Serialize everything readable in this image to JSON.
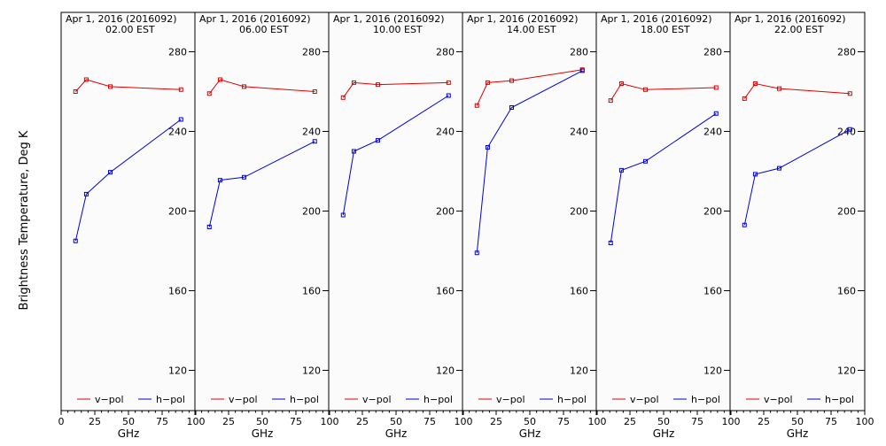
{
  "ylabel": "Brightness Temperature, Deg K",
  "xlabel": "GHz",
  "xticks": [
    "0",
    "25",
    "50",
    "75",
    "100"
  ],
  "yticks": [
    "120",
    "160",
    "200",
    "240",
    "280"
  ],
  "legend": {
    "vpol": "v−pol",
    "hpol": "h−pol"
  },
  "colors": {
    "vpol": "#e00000",
    "hpol": "#0000d8",
    "axes": "#000000",
    "panel_bg": "#fbfbfb"
  },
  "chart_data": [
    {
      "type": "line",
      "date": "Apr  1, 2016 (2016092)",
      "time": "02.00 EST",
      "xlim": [
        0,
        100
      ],
      "ylim": [
        100,
        295
      ],
      "series": [
        {
          "name": "v−pol",
          "x": [
            10.7,
            18.7,
            36.5,
            89.0
          ],
          "y": [
            260,
            266,
            262.5,
            261
          ]
        },
        {
          "name": "h−pol",
          "x": [
            10.7,
            18.7,
            36.5,
            89.0
          ],
          "y": [
            185,
            208.5,
            219.5,
            246
          ]
        }
      ]
    },
    {
      "type": "line",
      "date": "Apr  1, 2016 (2016092)",
      "time": "06.00 EST",
      "xlim": [
        0,
        100
      ],
      "ylim": [
        100,
        295
      ],
      "series": [
        {
          "name": "v−pol",
          "x": [
            10.7,
            18.7,
            36.5,
            89.0
          ],
          "y": [
            259,
            266,
            262.5,
            260
          ]
        },
        {
          "name": "h−pol",
          "x": [
            10.7,
            18.7,
            36.5,
            89.0
          ],
          "y": [
            192,
            215.5,
            217,
            235
          ]
        }
      ]
    },
    {
      "type": "line",
      "date": "Apr  1, 2016 (2016092)",
      "time": "10.00 EST",
      "xlim": [
        0,
        100
      ],
      "ylim": [
        100,
        295
      ],
      "series": [
        {
          "name": "v−pol",
          "x": [
            10.7,
            18.7,
            36.5,
            89.0
          ],
          "y": [
            257,
            264.5,
            263.5,
            264.5
          ]
        },
        {
          "name": "h−pol",
          "x": [
            10.7,
            18.7,
            36.5,
            89.0
          ],
          "y": [
            198,
            230,
            235.5,
            258
          ]
        }
      ]
    },
    {
      "type": "line",
      "date": "Apr  1, 2016 (2016092)",
      "time": "14.00 EST",
      "xlim": [
        0,
        100
      ],
      "ylim": [
        100,
        295
      ],
      "series": [
        {
          "name": "v−pol",
          "x": [
            10.7,
            18.7,
            36.5,
            89.0
          ],
          "y": [
            253,
            264.5,
            265.5,
            271
          ]
        },
        {
          "name": "h−pol",
          "x": [
            10.7,
            18.7,
            36.5,
            89.0
          ],
          "y": [
            179,
            232,
            252,
            270.5
          ]
        }
      ]
    },
    {
      "type": "line",
      "date": "Apr  1, 2016 (2016092)",
      "time": "18.00 EST",
      "xlim": [
        0,
        100
      ],
      "ylim": [
        100,
        295
      ],
      "series": [
        {
          "name": "v−pol",
          "x": [
            10.7,
            18.7,
            36.5,
            89.0
          ],
          "y": [
            255.5,
            264,
            261,
            262
          ]
        },
        {
          "name": "h−pol",
          "x": [
            10.7,
            18.7,
            36.5,
            89.0
          ],
          "y": [
            184,
            220.5,
            225,
            249
          ]
        }
      ]
    },
    {
      "type": "line",
      "date": "Apr  1, 2016 (2016092)",
      "time": "22.00 EST",
      "xlim": [
        0,
        100
      ],
      "ylim": [
        100,
        295
      ],
      "series": [
        {
          "name": "v−pol",
          "x": [
            10.7,
            18.7,
            36.5,
            89.0
          ],
          "y": [
            256.5,
            264,
            261.5,
            259
          ]
        },
        {
          "name": "h−pol",
          "x": [
            10.7,
            18.7,
            36.5,
            89.0
          ],
          "y": [
            193,
            218.5,
            221.5,
            241
          ]
        }
      ]
    }
  ]
}
